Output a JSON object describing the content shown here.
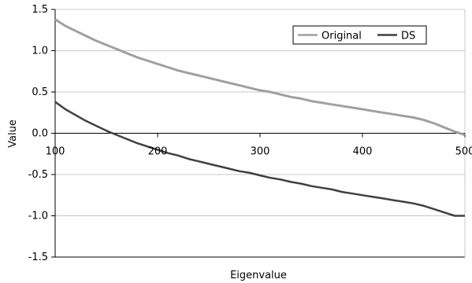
{
  "chart_data": {
    "type": "line",
    "xlabel": "Eigenvalue",
    "ylabel": "Value",
    "xlim": [
      100,
      500
    ],
    "ylim": [
      -1.5,
      1.5
    ],
    "x_ticks": [
      100,
      200,
      300,
      400,
      500
    ],
    "x_tick_labels": [
      "100",
      "200",
      "300",
      "400",
      "500"
    ],
    "y_ticks": [
      1.5,
      1.0,
      0.5,
      0.0,
      -0.5,
      -1.0,
      -1.5
    ],
    "y_tick_labels": [
      "1.5",
      "1.0",
      "0.5",
      "0.0",
      "-0.5",
      "-1.0",
      "-1.5"
    ],
    "grid": "horizontal",
    "legend_position": "top-right",
    "series": [
      {
        "name": "Original",
        "color": "#a0a0a0",
        "x": [
          100,
          110,
          120,
          130,
          140,
          150,
          160,
          170,
          180,
          190,
          200,
          210,
          220,
          230,
          240,
          250,
          260,
          270,
          280,
          290,
          300,
          310,
          320,
          330,
          340,
          350,
          360,
          370,
          380,
          390,
          400,
          410,
          420,
          430,
          440,
          450,
          460,
          470,
          480,
          490,
          500
        ],
        "y": [
          1.38,
          1.3,
          1.24,
          1.18,
          1.12,
          1.07,
          1.02,
          0.97,
          0.92,
          0.88,
          0.84,
          0.8,
          0.76,
          0.73,
          0.7,
          0.67,
          0.64,
          0.61,
          0.58,
          0.55,
          0.52,
          0.5,
          0.47,
          0.44,
          0.42,
          0.39,
          0.37,
          0.35,
          0.33,
          0.31,
          0.29,
          0.27,
          0.25,
          0.23,
          0.21,
          0.19,
          0.16,
          0.12,
          0.07,
          0.02,
          -0.02
        ]
      },
      {
        "name": "DS",
        "color": "#404040",
        "x": [
          100,
          110,
          120,
          130,
          140,
          150,
          160,
          170,
          180,
          190,
          200,
          210,
          220,
          230,
          240,
          250,
          260,
          270,
          280,
          290,
          300,
          310,
          320,
          330,
          340,
          350,
          360,
          370,
          380,
          390,
          400,
          410,
          420,
          430,
          440,
          450,
          460,
          470,
          480,
          490,
          500
        ],
        "y": [
          0.38,
          0.29,
          0.22,
          0.15,
          0.09,
          0.03,
          -0.02,
          -0.07,
          -0.12,
          -0.16,
          -0.2,
          -0.24,
          -0.27,
          -0.31,
          -0.34,
          -0.37,
          -0.4,
          -0.43,
          -0.46,
          -0.48,
          -0.51,
          -0.54,
          -0.56,
          -0.59,
          -0.61,
          -0.64,
          -0.66,
          -0.68,
          -0.71,
          -0.73,
          -0.75,
          -0.77,
          -0.79,
          -0.81,
          -0.83,
          -0.85,
          -0.88,
          -0.92,
          -0.96,
          -1.0,
          -1.0
        ]
      }
    ]
  }
}
